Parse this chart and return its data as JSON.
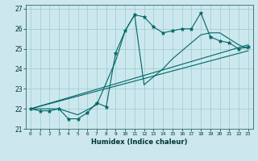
{
  "title": "",
  "xlabel": "Humidex (Indice chaleur)",
  "bg_color": "#cce8ee",
  "line_color": "#006666",
  "grid_color": "#99cccc",
  "xlim": [
    -0.5,
    23.5
  ],
  "ylim": [
    21.0,
    27.2
  ],
  "yticks": [
    21,
    22,
    23,
    24,
    25,
    26,
    27
  ],
  "xticks": [
    0,
    1,
    2,
    3,
    4,
    5,
    6,
    7,
    8,
    9,
    10,
    11,
    12,
    13,
    14,
    15,
    16,
    17,
    18,
    19,
    20,
    21,
    22,
    23
  ],
  "series1_x": [
    0,
    1,
    2,
    3,
    4,
    5,
    6,
    7,
    8,
    9,
    10,
    11,
    12,
    13,
    14,
    15,
    16,
    17,
    18,
    19,
    20,
    21,
    22,
    23
  ],
  "series1_y": [
    22.0,
    21.9,
    21.9,
    22.0,
    21.5,
    21.5,
    21.8,
    22.3,
    22.1,
    24.8,
    25.9,
    26.7,
    26.6,
    26.1,
    25.8,
    25.9,
    26.0,
    26.0,
    26.8,
    25.6,
    25.4,
    25.3,
    25.0,
    25.1
  ],
  "series2_x": [
    0,
    3,
    5,
    7,
    9,
    10,
    11,
    12,
    13,
    14,
    15,
    16,
    17,
    18,
    19,
    20,
    21,
    22,
    23
  ],
  "series2_y": [
    22.0,
    22.0,
    21.7,
    22.2,
    24.4,
    25.9,
    26.7,
    23.2,
    23.6,
    24.0,
    24.5,
    24.9,
    25.3,
    25.7,
    25.8,
    25.8,
    25.5,
    25.2,
    25.0
  ],
  "trend1_x": [
    0,
    23
  ],
  "trend1_y": [
    22.0,
    25.2
  ],
  "trend2_x": [
    0,
    23
  ],
  "trend2_y": [
    22.0,
    24.9
  ]
}
